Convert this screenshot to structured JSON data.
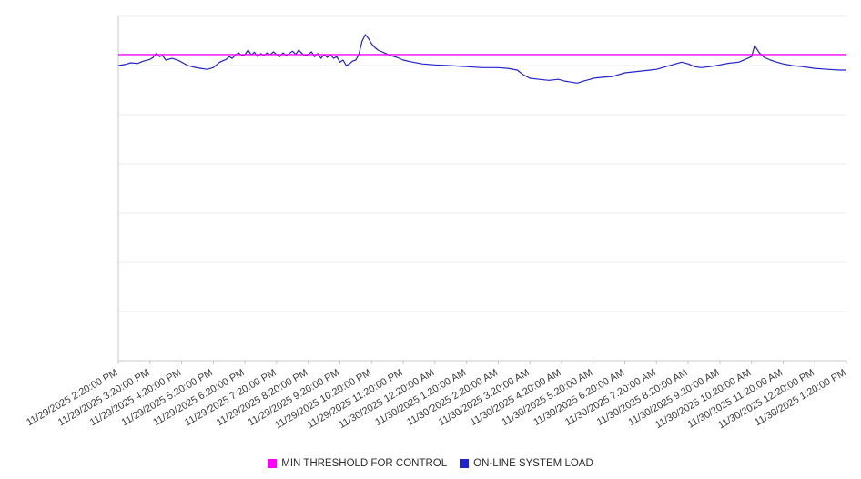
{
  "chart_data": {
    "type": "line",
    "title": "",
    "xlabel": "",
    "ylabel": "",
    "ylim": [
      0,
      100
    ],
    "y_tick_labels_visible": false,
    "grid": "horizontal",
    "gridline_divisions": 7,
    "legend_position": "bottom-center",
    "x_unit": "hours from first tick (11/29/2025 2:20:00 PM)",
    "colors": {
      "grid": "#ebebeb",
      "axis": "#c9c9c9",
      "tick_text": "#3b3b3b",
      "threshold_line": "#ff00ff",
      "load_line": "#2222cc"
    },
    "x_tick_labels": [
      "11/29/2025 2:20:00 PM",
      "11/29/2025 3:20:00 PM",
      "11/29/2025 4:20:00 PM",
      "11/29/2025 5:20:00 PM",
      "11/29/2025 6:20:00 PM",
      "11/29/2025 7:20:00 PM",
      "11/29/2025 8:20:00 PM",
      "11/29/2025 9:20:00 PM",
      "11/29/2025 10:20:00 PM",
      "11/29/2025 11:20:00 PM",
      "11/30/2025 12:20:00 AM",
      "11/30/2025 1:20:00 AM",
      "11/30/2025 2:20:00 AM",
      "11/30/2025 3:20:00 AM",
      "11/30/2025 4:20:00 AM",
      "11/30/2025 5:20:00 AM",
      "11/30/2025 6:20:00 AM",
      "11/30/2025 7:20:00 AM",
      "11/30/2025 8:20:00 AM",
      "11/30/2025 9:20:00 AM",
      "11/30/2025 10:20:00 AM",
      "11/30/2025 11:20:00 AM",
      "11/30/2025 12:20:00 PM",
      "11/30/2025 1:20:00 PM"
    ],
    "series": [
      {
        "name": "MIN THRESHOLD FOR CONTROL",
        "type": "constant-line",
        "color": "#ff00ff",
        "value": 88.9
      },
      {
        "name": "ON-LINE SYSTEM LOAD",
        "type": "line",
        "color": "#2222cc",
        "x": [
          0,
          0.2,
          0.4,
          0.6,
          0.8,
          1,
          1.1,
          1.2,
          1.3,
          1.4,
          1.5,
          1.7,
          1.9,
          2,
          2.2,
          2.4,
          2.6,
          2.8,
          3,
          3.2,
          3.4,
          3.5,
          3.6,
          3.7,
          3.8,
          3.9,
          4,
          4.1,
          4.2,
          4.3,
          4.4,
          4.5,
          4.6,
          4.7,
          4.8,
          4.9,
          5,
          5.1,
          5.2,
          5.3,
          5.4,
          5.5,
          5.6,
          5.7,
          5.8,
          5.9,
          6,
          6.1,
          6.2,
          6.3,
          6.4,
          6.5,
          6.6,
          6.7,
          6.8,
          6.9,
          7,
          7.1,
          7.2,
          7.3,
          7.4,
          7.5,
          7.6,
          7.7,
          7.8,
          7.9,
          8,
          8.1,
          8.2,
          8.4,
          8.6,
          8.8,
          9,
          9.3,
          9.6,
          10,
          10.5,
          11,
          11.5,
          12,
          12.3,
          12.6,
          12.8,
          13,
          13.3,
          13.6,
          13.9,
          14.1,
          14.3,
          14.5,
          14.7,
          14.9,
          15,
          15.3,
          15.6,
          16,
          16.4,
          16.8,
          17,
          17.3,
          17.6,
          17.8,
          18,
          18.2,
          18.4,
          18.7,
          19,
          19.3,
          19.6,
          19.8,
          20,
          20.1,
          20.25,
          20.4,
          20.6,
          20.8,
          21,
          21.3,
          21.6,
          22,
          22.4,
          22.8,
          23
        ],
        "y": [
          85.7,
          86,
          86.5,
          86.3,
          87,
          87.5,
          88.1,
          89.2,
          88.3,
          88.6,
          87.3,
          87.8,
          87.2,
          86.7,
          85.7,
          85.2,
          84.9,
          84.6,
          85.1,
          86.7,
          87.5,
          88.3,
          87.8,
          88.8,
          89.4,
          88.6,
          88.9,
          90.2,
          88.8,
          89.6,
          88.3,
          89.2,
          88.6,
          89.4,
          88.9,
          89.7,
          88.9,
          88.3,
          89.4,
          88.6,
          89.2,
          89.9,
          89,
          90.2,
          89.2,
          88.6,
          88.9,
          89.7,
          88.3,
          89.2,
          87.8,
          88.9,
          88.1,
          88.9,
          87.8,
          88.3,
          86.7,
          87.3,
          85.7,
          86.2,
          87,
          87.3,
          89,
          92.8,
          94.7,
          93.6,
          92,
          91,
          90.2,
          89.4,
          88.6,
          88.1,
          87.3,
          86.7,
          86.2,
          85.9,
          85.7,
          85.4,
          85.1,
          85.1,
          84.9,
          84.4,
          83,
          82,
          81.7,
          81.4,
          81.7,
          81.2,
          80.9,
          80.6,
          81.2,
          81.7,
          82,
          82.3,
          82.5,
          83.6,
          84,
          84.4,
          84.6,
          85.4,
          86.2,
          86.7,
          86.2,
          85.4,
          85.1,
          85.4,
          85.9,
          86.4,
          86.7,
          87.5,
          88.3,
          91.5,
          89.4,
          88.1,
          87.3,
          86.7,
          86.2,
          85.7,
          85.4,
          84.9,
          84.6,
          84.4,
          84.4
        ]
      }
    ],
    "legend": {
      "items": [
        {
          "label": "MIN THRESHOLD FOR CONTROL",
          "color": "#ff00ff"
        },
        {
          "label": "ON-LINE SYSTEM LOAD",
          "color": "#2222cc"
        }
      ]
    }
  }
}
